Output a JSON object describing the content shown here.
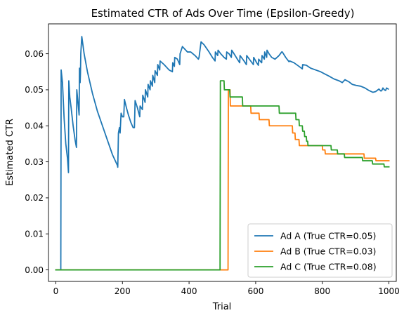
{
  "chart_data": {
    "type": "line",
    "title": "Estimated CTR of Ads Over Time (Epsilon-Greedy)",
    "xlabel": "Trial",
    "ylabel": "Estimated CTR",
    "xlim": [
      -22,
      1022
    ],
    "ylim": [
      -0.0032,
      0.0683
    ],
    "xticks": [
      0,
      200,
      400,
      600,
      800,
      1000
    ],
    "yticks": [
      0.0,
      0.01,
      0.02,
      0.03,
      0.04,
      0.05,
      0.06
    ],
    "ytick_labels": [
      "0.00",
      "0.01",
      "0.02",
      "0.03",
      "0.04",
      "0.05",
      "0.06"
    ],
    "grid": false,
    "legend_position": "lower right",
    "series": [
      {
        "name": "Ad A (True CTR=0.05)",
        "color": "#1f77b4",
        "points": [
          [
            0,
            0
          ],
          [
            15,
            0
          ],
          [
            16,
            0.0555
          ],
          [
            20,
            0.052
          ],
          [
            25,
            0.042
          ],
          [
            30,
            0.035
          ],
          [
            35,
            0.031
          ],
          [
            38,
            0.027
          ],
          [
            39,
            0.0525
          ],
          [
            42,
            0.048
          ],
          [
            46,
            0.045
          ],
          [
            52,
            0.04
          ],
          [
            58,
            0.036
          ],
          [
            62,
            0.034
          ],
          [
            63,
            0.05
          ],
          [
            67,
            0.046
          ],
          [
            70,
            0.043
          ],
          [
            71,
            0.056
          ],
          [
            73,
            0.052
          ],
          [
            74,
            0.0545
          ],
          [
            75,
            0.06
          ],
          [
            78,
            0.0648
          ],
          [
            85,
            0.06
          ],
          [
            95,
            0.055
          ],
          [
            110,
            0.049
          ],
          [
            125,
            0.044
          ],
          [
            140,
            0.04
          ],
          [
            155,
            0.036
          ],
          [
            170,
            0.032
          ],
          [
            185,
            0.029
          ],
          [
            186,
            0.0285
          ],
          [
            188,
            0.038
          ],
          [
            191,
            0.0395
          ],
          [
            193,
            0.038
          ],
          [
            196,
            0.0435
          ],
          [
            200,
            0.0425
          ],
          [
            204,
            0.0425
          ],
          [
            206,
            0.0473
          ],
          [
            212,
            0.045
          ],
          [
            218,
            0.043
          ],
          [
            225,
            0.041
          ],
          [
            232,
            0.0395
          ],
          [
            236,
            0.0395
          ],
          [
            237,
            0.043
          ],
          [
            238,
            0.047
          ],
          [
            245,
            0.045
          ],
          [
            252,
            0.0425
          ],
          [
            253,
            0.0455
          ],
          [
            260,
            0.0445
          ],
          [
            261,
            0.0485
          ],
          [
            268,
            0.0465
          ],
          [
            269,
            0.05
          ],
          [
            276,
            0.048
          ],
          [
            277,
            0.0515
          ],
          [
            283,
            0.05
          ],
          [
            284,
            0.0525
          ],
          [
            290,
            0.051
          ],
          [
            291,
            0.054
          ],
          [
            297,
            0.052
          ],
          [
            298,
            0.0553
          ],
          [
            305,
            0.054
          ],
          [
            306,
            0.057
          ],
          [
            312,
            0.0555
          ],
          [
            313,
            0.058
          ],
          [
            325,
            0.057
          ],
          [
            340,
            0.0555
          ],
          [
            350,
            0.055
          ],
          [
            351,
            0.0575
          ],
          [
            356,
            0.0565
          ],
          [
            357,
            0.059
          ],
          [
            365,
            0.0585
          ],
          [
            372,
            0.057
          ],
          [
            373,
            0.06
          ],
          [
            380,
            0.062
          ],
          [
            385,
            0.0615
          ],
          [
            395,
            0.0605
          ],
          [
            405,
            0.0605
          ],
          [
            418,
            0.0595
          ],
          [
            428,
            0.0585
          ],
          [
            430,
            0.059
          ],
          [
            436,
            0.0633
          ],
          [
            445,
            0.0625
          ],
          [
            460,
            0.0605
          ],
          [
            470,
            0.059
          ],
          [
            478,
            0.058
          ],
          [
            479,
            0.0605
          ],
          [
            486,
            0.0595
          ],
          [
            487,
            0.061
          ],
          [
            495,
            0.06
          ],
          [
            500,
            0.0595
          ],
          [
            505,
            0.059
          ],
          [
            512,
            0.0585
          ],
          [
            513,
            0.0605
          ],
          [
            520,
            0.06
          ],
          [
            527,
            0.059
          ],
          [
            528,
            0.061
          ],
          [
            535,
            0.06
          ],
          [
            545,
            0.0585
          ],
          [
            552,
            0.0575
          ],
          [
            553,
            0.0595
          ],
          [
            565,
            0.058
          ],
          [
            572,
            0.057
          ],
          [
            573,
            0.0595
          ],
          [
            585,
            0.058
          ],
          [
            593,
            0.057
          ],
          [
            594,
            0.059
          ],
          [
            603,
            0.0575
          ],
          [
            608,
            0.0568
          ],
          [
            609,
            0.0585
          ],
          [
            615,
            0.0578
          ],
          [
            618,
            0.0575
          ],
          [
            619,
            0.0595
          ],
          [
            626,
            0.0585
          ],
          [
            627,
            0.0605
          ],
          [
            633,
            0.059
          ],
          [
            634,
            0.061
          ],
          [
            640,
            0.06
          ],
          [
            648,
            0.059
          ],
          [
            658,
            0.0585
          ],
          [
            670,
            0.0595
          ],
          [
            678,
            0.0605
          ],
          [
            680,
            0.0605
          ],
          [
            690,
            0.059
          ],
          [
            700,
            0.0578
          ],
          [
            702,
            0.058
          ],
          [
            715,
            0.0575
          ],
          [
            730,
            0.0565
          ],
          [
            740,
            0.0558
          ],
          [
            741,
            0.057
          ],
          [
            752,
            0.0568
          ],
          [
            765,
            0.056
          ],
          [
            780,
            0.0555
          ],
          [
            795,
            0.055
          ],
          [
            805,
            0.0545
          ],
          [
            820,
            0.0538
          ],
          [
            835,
            0.053
          ],
          [
            850,
            0.0525
          ],
          [
            860,
            0.052
          ],
          [
            868,
            0.0528
          ],
          [
            880,
            0.0522
          ],
          [
            890,
            0.0515
          ],
          [
            902,
            0.0512
          ],
          [
            915,
            0.051
          ],
          [
            928,
            0.0505
          ],
          [
            940,
            0.0498
          ],
          [
            952,
            0.0493
          ],
          [
            960,
            0.0495
          ],
          [
            970,
            0.0502
          ],
          [
            975,
            0.0497
          ],
          [
            978,
            0.0497
          ],
          [
            982,
            0.0505
          ],
          [
            986,
            0.05
          ],
          [
            990,
            0.0498
          ],
          [
            993,
            0.0505
          ],
          [
            998,
            0.0502
          ]
        ]
      },
      {
        "name": "Ad B (True CTR=0.03)",
        "color": "#ff7f0e",
        "points": [
          [
            0,
            0
          ],
          [
            517,
            0
          ],
          [
            518,
            0.05
          ],
          [
            523,
            0.05
          ],
          [
            524,
            0.0455
          ],
          [
            585,
            0.0455
          ],
          [
            586,
            0.0435
          ],
          [
            610,
            0.0435
          ],
          [
            611,
            0.0417
          ],
          [
            640,
            0.0417
          ],
          [
            641,
            0.04
          ],
          [
            710,
            0.04
          ],
          [
            711,
            0.038
          ],
          [
            718,
            0.038
          ],
          [
            719,
            0.0362
          ],
          [
            730,
            0.0362
          ],
          [
            731,
            0.0345
          ],
          [
            800,
            0.0345
          ],
          [
            801,
            0.0333
          ],
          [
            808,
            0.0333
          ],
          [
            809,
            0.0322
          ],
          [
            865,
            0.0322
          ],
          [
            866,
            0.0322
          ],
          [
            925,
            0.0322
          ],
          [
            926,
            0.031
          ],
          [
            960,
            0.031
          ],
          [
            961,
            0.0303
          ],
          [
            1000,
            0.0303
          ]
        ]
      },
      {
        "name": "Ad C (True CTR=0.08)",
        "color": "#2ca02c",
        "points": [
          [
            0,
            0
          ],
          [
            493,
            0
          ],
          [
            494,
            0.0525
          ],
          [
            505,
            0.0525
          ],
          [
            506,
            0.05
          ],
          [
            522,
            0.05
          ],
          [
            523,
            0.048
          ],
          [
            560,
            0.048
          ],
          [
            561,
            0.0455
          ],
          [
            670,
            0.0455
          ],
          [
            671,
            0.0435
          ],
          [
            720,
            0.0435
          ],
          [
            721,
            0.0417
          ],
          [
            730,
            0.0417
          ],
          [
            731,
            0.04
          ],
          [
            740,
            0.04
          ],
          [
            741,
            0.0385
          ],
          [
            746,
            0.0385
          ],
          [
            747,
            0.037
          ],
          [
            752,
            0.037
          ],
          [
            753,
            0.0357
          ],
          [
            756,
            0.0357
          ],
          [
            757,
            0.0345
          ],
          [
            826,
            0.0345
          ],
          [
            827,
            0.0333
          ],
          [
            845,
            0.0333
          ],
          [
            846,
            0.0322
          ],
          [
            866,
            0.0322
          ],
          [
            867,
            0.0312
          ],
          [
            920,
            0.0312
          ],
          [
            921,
            0.0303
          ],
          [
            950,
            0.0303
          ],
          [
            951,
            0.0294
          ],
          [
            985,
            0.0294
          ],
          [
            986,
            0.0286
          ],
          [
            1000,
            0.0286
          ]
        ]
      }
    ]
  }
}
